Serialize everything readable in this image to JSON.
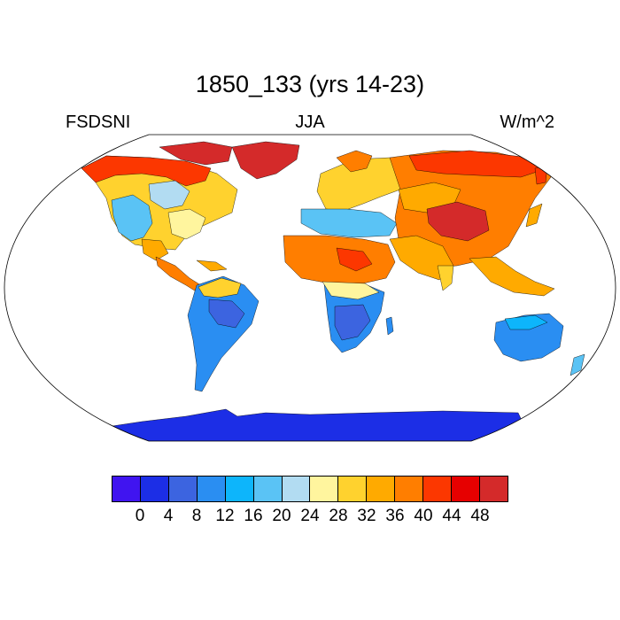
{
  "header": {
    "title": "1850_133 (yrs 14-23)",
    "left_label": "FSDSNI",
    "center_label": "JJA",
    "right_label": "W/m^2"
  },
  "colorbar": {
    "colors": [
      "#4014f0",
      "#1c2ee6",
      "#3c64e0",
      "#2a8ef2",
      "#0db5fb",
      "#5ac3f5",
      "#b2dcf2",
      "#fff59e",
      "#ffd22e",
      "#ffaa00",
      "#ff7e00",
      "#fc3700",
      "#e60000",
      "#d42a2a"
    ],
    "tick_labels": [
      "0",
      "4",
      "8",
      "12",
      "16",
      "20",
      "24",
      "28",
      "32",
      "36",
      "40",
      "44",
      "48"
    ]
  },
  "colors": {
    "very_high": "#d42a2a",
    "high": "#fc3700",
    "upper": "#ff7e00",
    "mid_high": "#ffaa00",
    "mid": "#ffd22e",
    "low_warm": "#fff59e",
    "light_blue": "#b2dcf2",
    "sky": "#5ac3f5",
    "cyan": "#0db5fb",
    "blue": "#2a8ef2",
    "mid_blue": "#3c64e0",
    "dark_blue": "#1c2ee6"
  }
}
